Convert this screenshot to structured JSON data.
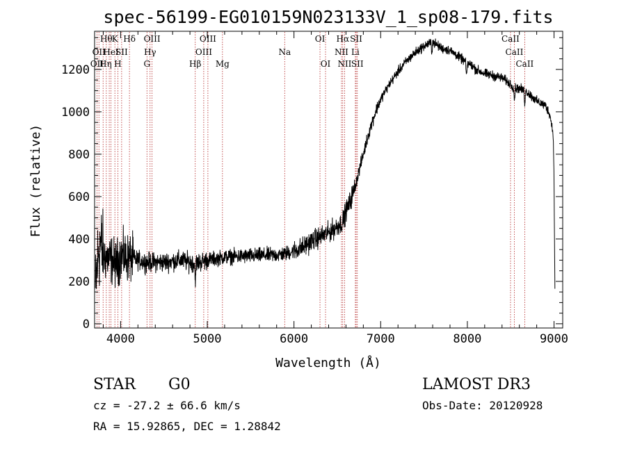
{
  "chart_data": {
    "type": "line",
    "title": "spec-56199-EG010159N023133V_1_sp08-179.fits",
    "xlabel": "Wavelength (Å)",
    "ylabel": "Flux (relative)",
    "xlim": [
      3700,
      9100
    ],
    "ylim": [
      -20,
      1380
    ],
    "x_ticks": [
      4000,
      5000,
      6000,
      7000,
      8000,
      9000
    ],
    "y_ticks": [
      0,
      200,
      400,
      600,
      800,
      1000,
      1200
    ],
    "colors": {
      "spectrum": "#000000",
      "lines": "#b22222"
    },
    "spectrum_anchors": [
      [
        3710,
        150
      ],
      [
        3740,
        330
      ],
      [
        3770,
        380
      ],
      [
        3800,
        320
      ],
      [
        3850,
        310
      ],
      [
        3900,
        300
      ],
      [
        3950,
        280
      ],
      [
        4000,
        320
      ],
      [
        4100,
        310
      ],
      [
        4200,
        300
      ],
      [
        4300,
        290
      ],
      [
        4500,
        290
      ],
      [
        4700,
        300
      ],
      [
        4860,
        285
      ],
      [
        5000,
        300
      ],
      [
        5200,
        315
      ],
      [
        5500,
        320
      ],
      [
        5800,
        325
      ],
      [
        5900,
        330
      ],
      [
        6100,
        360
      ],
      [
        6200,
        390
      ],
      [
        6300,
        410
      ],
      [
        6400,
        430
      ],
      [
        6500,
        460
      ],
      [
        6560,
        480
      ],
      [
        6600,
        530
      ],
      [
        6650,
        580
      ],
      [
        6700,
        640
      ],
      [
        6750,
        720
      ],
      [
        6800,
        800
      ],
      [
        6850,
        880
      ],
      [
        6900,
        950
      ],
      [
        6950,
        1010
      ],
      [
        7000,
        1060
      ],
      [
        7100,
        1130
      ],
      [
        7200,
        1190
      ],
      [
        7300,
        1240
      ],
      [
        7400,
        1280
      ],
      [
        7500,
        1310
      ],
      [
        7550,
        1320
      ],
      [
        7600,
        1330
      ],
      [
        7700,
        1300
      ],
      [
        7800,
        1290
      ],
      [
        7900,
        1260
      ],
      [
        8000,
        1230
      ],
      [
        8050,
        1220
      ],
      [
        8100,
        1200
      ],
      [
        8200,
        1180
      ],
      [
        8300,
        1170
      ],
      [
        8400,
        1160
      ],
      [
        8500,
        1130
      ],
      [
        8550,
        1110
      ],
      [
        8600,
        1110
      ],
      [
        8700,
        1090
      ],
      [
        8800,
        1050
      ],
      [
        8900,
        1030
      ],
      [
        8950,
        990
      ],
      [
        8990,
        900
      ],
      [
        9000,
        680
      ],
      [
        9010,
        150
      ]
    ],
    "spectrum_dips": [
      [
        4861,
        80
      ],
      [
        7590,
        50
      ],
      [
        7990,
        80
      ],
      [
        8542,
        60
      ],
      [
        8662,
        60
      ]
    ],
    "emission_lines": [
      {
        "wavelength": 3727,
        "row": 2,
        "label": "OII"
      },
      {
        "wavelength": 3750,
        "row": 1,
        "label": "OII"
      },
      {
        "wavelength": 3798,
        "row": 2,
        "label": "H"
      },
      {
        "wavelength": 3835,
        "row": 0,
        "label": "Hθ"
      },
      {
        "wavelength": 3869,
        "row": 2,
        "label": "η"
      },
      {
        "wavelength": 3889,
        "row": 1,
        "label": "HeI"
      },
      {
        "wavelength": 3934,
        "row": 0,
        "label": "K"
      },
      {
        "wavelength": 3968,
        "row": 2,
        "label": "H"
      },
      {
        "wavelength": 4012,
        "row": 1,
        "label": "SII"
      },
      {
        "wavelength": 4102,
        "row": 0,
        "label": "Hδ"
      },
      {
        "wavelength": 4304,
        "row": 2,
        "label": "G"
      },
      {
        "wavelength": 4340,
        "row": 1,
        "label": "Hγ"
      },
      {
        "wavelength": 4363,
        "row": 0,
        "label": "OIII"
      },
      {
        "wavelength": 4861,
        "row": 2,
        "label": "Hβ"
      },
      {
        "wavelength": 4959,
        "row": 1,
        "label": "OIII"
      },
      {
        "wavelength": 5007,
        "row": 0,
        "label": "OIII"
      },
      {
        "wavelength": 5175,
        "row": 2,
        "label": "Mg"
      },
      {
        "wavelength": 5893,
        "row": 1,
        "label": "Na"
      },
      {
        "wavelength": 6300,
        "row": 0,
        "label": "OI"
      },
      {
        "wavelength": 6364,
        "row": 2,
        "label": "OI"
      },
      {
        "wavelength": 6548,
        "row": 1,
        "label": "NII"
      },
      {
        "wavelength": 6563,
        "row": 0,
        "label": "Hα"
      },
      {
        "wavelength": 6584,
        "row": 2,
        "label": "NII"
      },
      {
        "wavelength": 6708,
        "row": 1,
        "label": "Li"
      },
      {
        "wavelength": 6717,
        "row": 0,
        "label": "SII"
      },
      {
        "wavelength": 6731,
        "row": 2,
        "label": "SII"
      },
      {
        "wavelength": 8498,
        "row": 0,
        "label": "CaII"
      },
      {
        "wavelength": 8542,
        "row": 1,
        "label": "CaII"
      },
      {
        "wavelength": 8662,
        "row": 2,
        "label": "CaII"
      }
    ]
  },
  "info": {
    "object_class": "STAR",
    "subclass": "G0",
    "survey": "LAMOST DR3",
    "redshift": "cz = -27.2 ± 66.6 km/s",
    "obs_date": "Obs-Date: 20120928",
    "coords": "RA =  15.92865, DEC =   1.28842"
  }
}
